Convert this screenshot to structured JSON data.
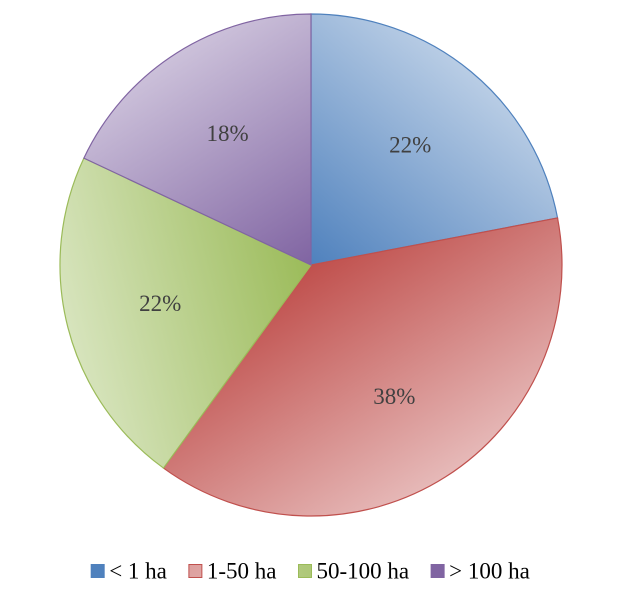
{
  "chart_data": {
    "type": "pie",
    "title": "",
    "start_angle_deg": 0,
    "direction": "clockwise",
    "legend_position": "bottom",
    "slices": [
      {
        "label": "< 1 ha",
        "value": 22,
        "value_label": "22%",
        "color": "#4F81BD",
        "color_light": "#B9CDE5"
      },
      {
        "label": "1-50 ha",
        "value": 38,
        "value_label": "38%",
        "color": "#C0504D",
        "color_light": "#E6B9B8"
      },
      {
        "label": "50-100 ha",
        "value": 22,
        "value_label": "22%",
        "color": "#9BBB59",
        "color_light": "#D7E4BD"
      },
      {
        "label": "> 100 ha",
        "value": 18,
        "value_label": "18%",
        "color": "#8064A2",
        "color_light": "#CCC1DA"
      }
    ]
  }
}
